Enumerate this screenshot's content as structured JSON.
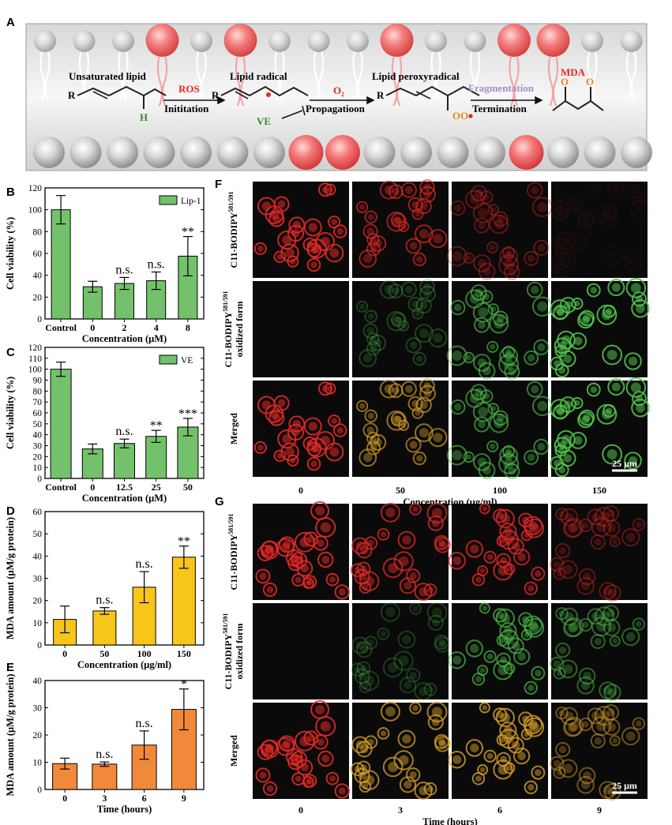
{
  "panel_letters": {
    "a": "A",
    "b": "B",
    "c": "C",
    "d": "D",
    "e": "E",
    "f": "F",
    "g": "G"
  },
  "mechanism": {
    "r1": "R",
    "r2": "R",
    "r3": "R",
    "unsat": "Unsaturated lipid",
    "h": "H",
    "ros": "ROS",
    "initiation": "Inititation",
    "radical": "Lipid radical",
    "ve": "VE",
    "o2": "O",
    "o2sub": "2",
    "propagation": "Propagatioon",
    "peroxy": "Lipid peroxyradical",
    "ooo": "OO",
    "fragmentation": "Fragmentation",
    "termination": "Termination",
    "mda": "MDA",
    "o_left": "O",
    "o_right": "O"
  },
  "colors": {
    "green_bar": "#74C16B",
    "yellow_bar": "#F8C61A",
    "orange_bar": "#F08A3A",
    "red_cell": "#E52824",
    "green_cell": "#4FC34A",
    "pink_head": "#F26F70"
  },
  "chart_data": [
    {
      "id": "B",
      "type": "bar",
      "ylabel": "Cell viability (%)",
      "xlabel": "Concentration (μM)",
      "categories": [
        "Control",
        "0",
        "2",
        "4",
        "8"
      ],
      "series": [
        {
          "name": "Lip-1",
          "values": [
            100,
            29.5,
            32.5,
            35,
            57.5
          ],
          "errors": [
            13,
            5,
            5.5,
            8,
            18
          ]
        }
      ],
      "significance": [
        "",
        "",
        "n.s.",
        "n.s.",
        "**"
      ],
      "ylim": [
        0,
        120
      ],
      "yticks": [
        0,
        20,
        40,
        60,
        80,
        100,
        120
      ],
      "legend": "top-right"
    },
    {
      "id": "C",
      "type": "bar",
      "ylabel": "Cell viability (%)",
      "xlabel": "Concentration (μM)",
      "categories": [
        "Control",
        "0",
        "12.5",
        "25",
        "50"
      ],
      "series": [
        {
          "name": "VE",
          "values": [
            100,
            27,
            32,
            38.5,
            47
          ],
          "errors": [
            6.5,
            4.5,
            4,
            5.5,
            8
          ]
        }
      ],
      "significance": [
        "",
        "",
        "n.s.",
        "**",
        "***"
      ],
      "ylim": [
        0,
        120
      ],
      "yticks": [
        0,
        10,
        20,
        30,
        40,
        50,
        60,
        70,
        80,
        90,
        100,
        110,
        120
      ],
      "legend": "top-right"
    },
    {
      "id": "D",
      "type": "bar",
      "ylabel": "MDA amount (μM/g protein)",
      "xlabel": "Concentration (μg/ml)",
      "categories": [
        "0",
        "50",
        "100",
        "150"
      ],
      "series": [
        {
          "values": [
            11.5,
            15.3,
            26,
            39.5
          ],
          "errors": [
            6,
            1.5,
            7,
            5
          ]
        }
      ],
      "significance": [
        "",
        "n.s.",
        "n.s.",
        "**"
      ],
      "ylim": [
        0,
        60
      ],
      "yticks": [
        0,
        10,
        20,
        30,
        40,
        50,
        60
      ]
    },
    {
      "id": "E",
      "type": "bar",
      "ylabel": "MDA amount (μM/g protein)",
      "xlabel": "Time (hours)",
      "categories": [
        "0",
        "3",
        "6",
        "9"
      ],
      "series": [
        {
          "values": [
            9.5,
            9.3,
            16.3,
            29.4
          ],
          "errors": [
            2,
            0.8,
            5.2,
            7.5
          ]
        }
      ],
      "significance": [
        "",
        "n.s.",
        "n.s.",
        "*"
      ],
      "ylim": [
        0,
        40
      ],
      "yticks": [
        0,
        10,
        20,
        30,
        40
      ]
    }
  ],
  "microscopy": {
    "F": {
      "rows": [
        "C11-BODIPY",
        "oxidized form",
        "Merged"
      ],
      "row_line1": "C11-BODIPY",
      "row_sup": "581/591",
      "row2_line2": "oxidized form",
      "merged": "Merged",
      "columns": [
        "0",
        "50",
        "100",
        "150"
      ],
      "xlabel": "Concentration (μg/ml)",
      "scale_bar": "25 μm",
      "red_intensity": [
        1.0,
        0.75,
        0.45,
        0.08
      ],
      "green_intensity": [
        0.0,
        0.35,
        0.7,
        1.0
      ]
    },
    "G": {
      "row_line1": "C11-BODIPY",
      "row_sup": "581/591",
      "row2_line2": "oxidized form",
      "merged": "Merged",
      "columns": [
        "0",
        "3",
        "6",
        "9"
      ],
      "xlabel": "Time (hours)",
      "scale_bar": "25 μm",
      "red_intensity": [
        1.0,
        0.85,
        0.9,
        0.45
      ],
      "green_intensity": [
        0.0,
        0.3,
        0.75,
        0.55
      ]
    }
  }
}
